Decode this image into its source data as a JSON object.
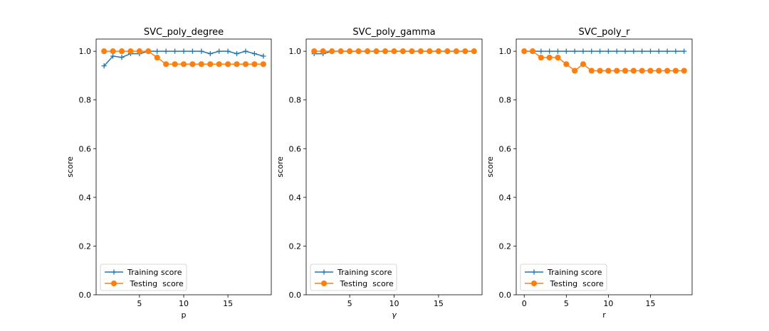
{
  "chart_data": [
    {
      "type": "line",
      "title": "SVC_poly_degree",
      "xlabel": "p",
      "ylabel": "score",
      "xlim": [
        0.1,
        19.9
      ],
      "ylim": [
        0,
        1.05
      ],
      "xticks": [
        5,
        10,
        15
      ],
      "yticks": [
        0.0,
        0.2,
        0.4,
        0.6,
        0.8,
        1.0
      ],
      "legend_position": "lower-left",
      "series": [
        {
          "name": "Training score",
          "marker": "plus",
          "color": "#1f77b4",
          "x": [
            1,
            2,
            3,
            4,
            5,
            6,
            7,
            8,
            9,
            10,
            11,
            12,
            13,
            14,
            15,
            16,
            17,
            18,
            19
          ],
          "y": [
            0.94,
            0.98,
            0.975,
            0.99,
            0.99,
            1.0,
            1.0,
            1.0,
            1.0,
            1.0,
            1.0,
            1.0,
            0.99,
            1.0,
            1.0,
            0.99,
            1.0,
            0.99,
            0.98
          ]
        },
        {
          "name": " Testing  score",
          "marker": "circle",
          "color": "#ff7f0e",
          "x": [
            1,
            2,
            3,
            4,
            5,
            6,
            7,
            8,
            9,
            10,
            11,
            12,
            13,
            14,
            15,
            16,
            17,
            18,
            19
          ],
          "y": [
            1.0,
            1.0,
            1.0,
            1.0,
            1.0,
            1.0,
            0.974,
            0.947,
            0.947,
            0.947,
            0.947,
            0.947,
            0.947,
            0.947,
            0.947,
            0.947,
            0.947,
            0.947,
            0.947
          ]
        }
      ]
    },
    {
      "type": "line",
      "title": "SVC_poly_gamma",
      "xlabel": "γ",
      "ylabel": "score",
      "xlim": [
        0.1,
        19.9
      ],
      "ylim": [
        0,
        1.05
      ],
      "xticks": [
        5,
        10,
        15
      ],
      "yticks": [
        0.0,
        0.2,
        0.4,
        0.6,
        0.8,
        1.0
      ],
      "legend_position": "lower-left",
      "series": [
        {
          "name": "Training score",
          "marker": "plus",
          "color": "#1f77b4",
          "x": [
            1,
            2,
            3,
            4,
            5,
            6,
            7,
            8,
            9,
            10,
            11,
            12,
            13,
            14,
            15,
            16,
            17,
            18,
            19
          ],
          "y": [
            0.99,
            0.99,
            1.0,
            1.0,
            1.0,
            1.0,
            1.0,
            1.0,
            1.0,
            1.0,
            1.0,
            1.0,
            1.0,
            1.0,
            1.0,
            1.0,
            1.0,
            1.0,
            1.0
          ]
        },
        {
          "name": " Testing  score",
          "marker": "circle",
          "color": "#ff7f0e",
          "x": [
            1,
            2,
            3,
            4,
            5,
            6,
            7,
            8,
            9,
            10,
            11,
            12,
            13,
            14,
            15,
            16,
            17,
            18,
            19
          ],
          "y": [
            1.0,
            1.0,
            1.0,
            1.0,
            1.0,
            1.0,
            1.0,
            1.0,
            1.0,
            1.0,
            1.0,
            1.0,
            1.0,
            1.0,
            1.0,
            1.0,
            1.0,
            1.0,
            1.0
          ]
        }
      ]
    },
    {
      "type": "line",
      "title": "SVC_poly_r",
      "xlabel": "r",
      "ylabel": "score",
      "xlim": [
        -0.95,
        19.95
      ],
      "ylim": [
        0,
        1.05
      ],
      "xticks": [
        0,
        5,
        10,
        15
      ],
      "yticks": [
        0.0,
        0.2,
        0.4,
        0.6,
        0.8,
        1.0
      ],
      "legend_position": "lower-left",
      "series": [
        {
          "name": "Training score",
          "marker": "plus",
          "color": "#1f77b4",
          "x": [
            0,
            1,
            2,
            3,
            4,
            5,
            6,
            7,
            8,
            9,
            10,
            11,
            12,
            13,
            14,
            15,
            16,
            17,
            18,
            19
          ],
          "y": [
            1.0,
            1.0,
            1.0,
            1.0,
            1.0,
            1.0,
            1.0,
            1.0,
            1.0,
            1.0,
            1.0,
            1.0,
            1.0,
            1.0,
            1.0,
            1.0,
            1.0,
            1.0,
            1.0,
            1.0
          ]
        },
        {
          "name": " Testing  score",
          "marker": "circle",
          "color": "#ff7f0e",
          "x": [
            0,
            1,
            2,
            3,
            4,
            5,
            6,
            7,
            8,
            9,
            10,
            11,
            12,
            13,
            14,
            15,
            16,
            17,
            18,
            19
          ],
          "y": [
            1.0,
            1.0,
            0.974,
            0.974,
            0.974,
            0.947,
            0.92,
            0.947,
            0.92,
            0.92,
            0.92,
            0.92,
            0.92,
            0.92,
            0.92,
            0.92,
            0.92,
            0.92,
            0.92,
            0.92
          ]
        }
      ]
    }
  ]
}
